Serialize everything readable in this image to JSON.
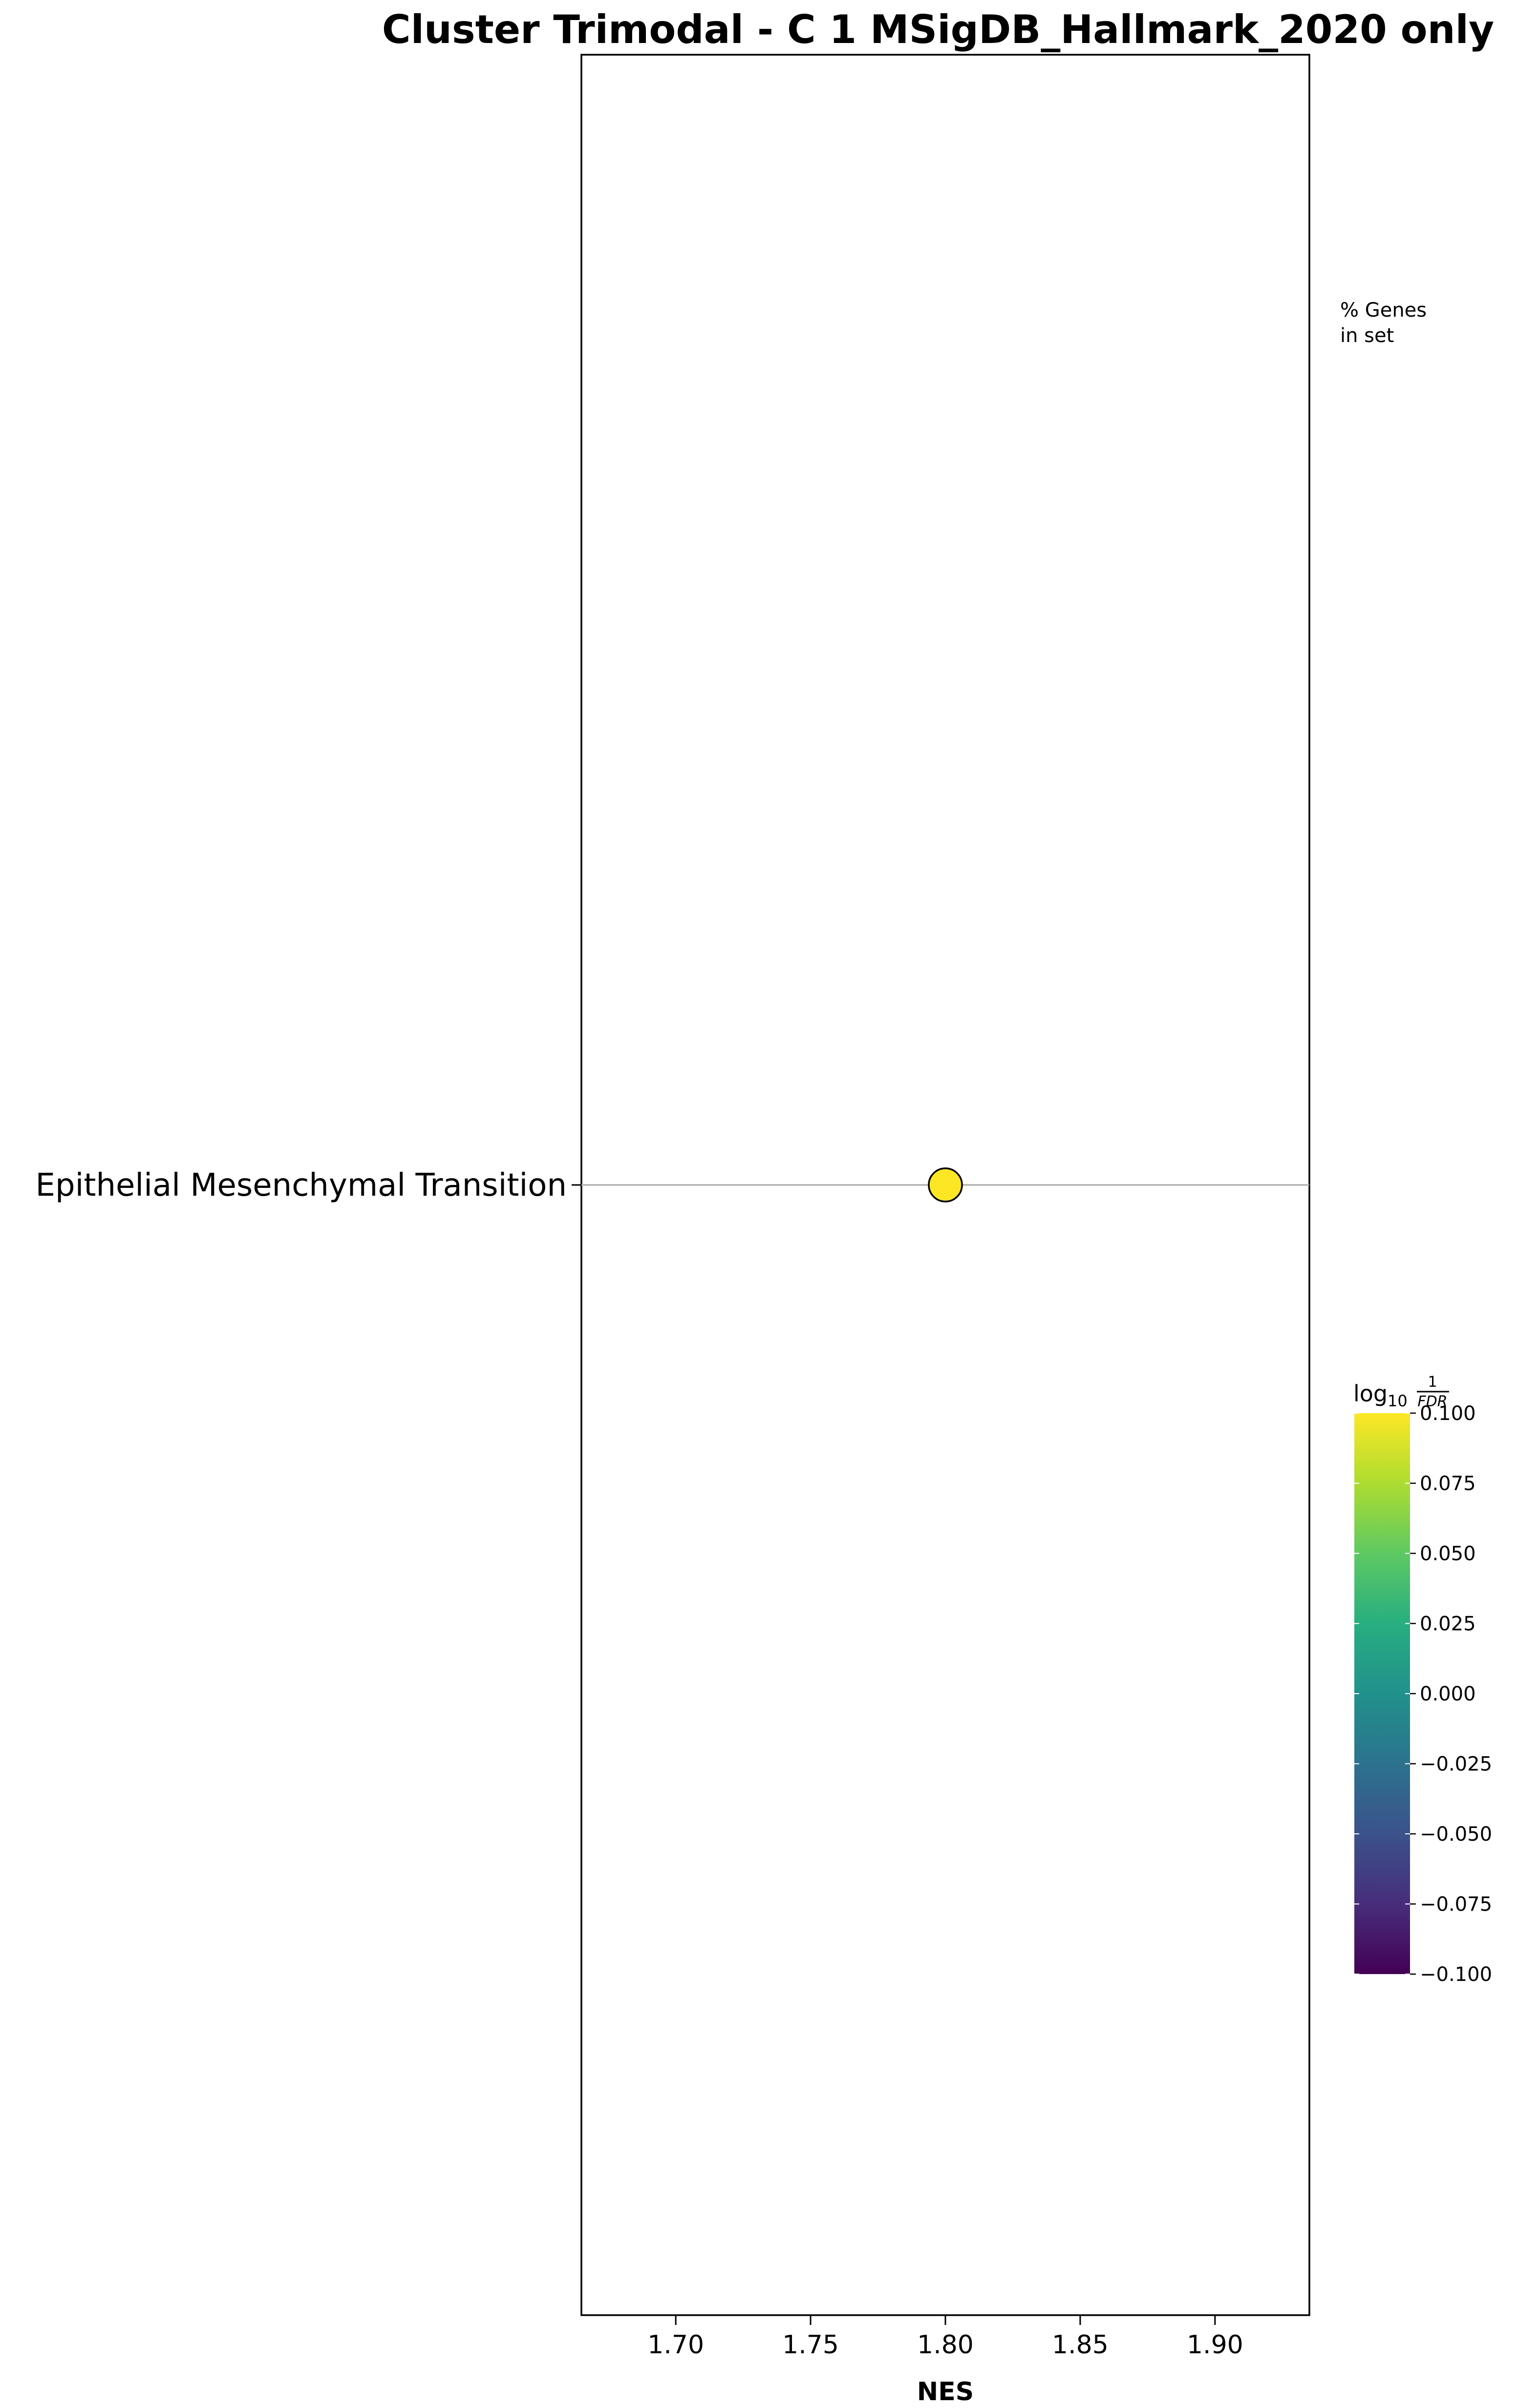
{
  "chart_data": {
    "type": "scatter",
    "title": "Cluster Trimodal - C 1 MSigDB_Hallmark_2020 only",
    "xlabel": "NES",
    "ylabel": "",
    "xlim": [
      1.665,
      1.935
    ],
    "xticks": [
      1.7,
      1.75,
      1.8,
      1.85,
      1.9
    ],
    "xtick_labels": [
      "1.70",
      "1.75",
      "1.80",
      "1.85",
      "1.90"
    ],
    "categories": [
      "Epithelial Mesenchymal Transition"
    ],
    "points": [
      {
        "term": "Epithelial Mesenchymal Transition",
        "nes": 1.8,
        "log10_inv_fdr": 0.1
      }
    ],
    "size_legend_title": [
      "% Genes",
      "in set"
    ],
    "colorbar": {
      "label_base": "log",
      "label_sub": "10",
      "label_num": "1",
      "label_den": "FDR",
      "range": [
        -0.1,
        0.1
      ],
      "ticks": [
        0.1,
        0.075,
        0.05,
        0.025,
        0.0,
        -0.025,
        -0.05,
        -0.075,
        -0.1
      ],
      "tick_labels": [
        "0.100",
        "0.075",
        "0.050",
        "0.025",
        "0.000",
        "−0.025",
        "−0.050",
        "−0.075",
        "−0.100"
      ],
      "colormap": "viridis"
    },
    "colors": {
      "point_fill": "#fde725",
      "point_edge": "#000000",
      "guide_line": "#aaaaaa",
      "viridis_top": "#fde725",
      "viridis_bottom": "#440154"
    },
    "grid": false
  }
}
